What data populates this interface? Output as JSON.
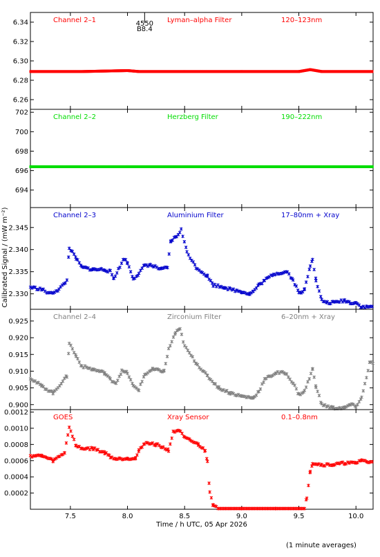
{
  "figure": {
    "ylabel": "Calibrated Signal / (mW m⁻²)",
    "xlabel": "Time / h UTC, 05 Apr 2026",
    "footnote": "(1 minute averages)",
    "annotation": {
      "lines": [
        "4550",
        "B8.4"
      ],
      "x": 8.15
    }
  },
  "chart_data": [
    {
      "type": "scatter",
      "panel_label": "Channel 2–1",
      "filter": "Lyman–alpha Filter",
      "band": "120–123nm",
      "color": "#ff0000",
      "marker": "dense",
      "xlim": [
        7.15,
        10.15
      ],
      "ylim": [
        6.25,
        6.35
      ],
      "yticks": [
        6.26,
        6.28,
        6.3,
        6.32,
        6.34
      ],
      "ytick_labels": [
        "6.26",
        "6.28",
        "6.30",
        "6.32",
        "6.34"
      ],
      "xticks": [
        7.5,
        8.0,
        8.5,
        9.0,
        9.5,
        10.0
      ],
      "points": [
        [
          7.15,
          6.289
        ],
        [
          7.6,
          6.289
        ],
        [
          8.0,
          6.29
        ],
        [
          8.1,
          6.289
        ],
        [
          8.5,
          6.289
        ],
        [
          9.0,
          6.289
        ],
        [
          9.5,
          6.289
        ],
        [
          9.6,
          6.291
        ],
        [
          9.7,
          6.289
        ],
        [
          10.15,
          6.289
        ]
      ]
    },
    {
      "type": "scatter",
      "panel_label": "Channel 2–2",
      "filter": "Herzberg Filter",
      "band": "190–222nm",
      "color": "#00dd00",
      "marker": "dense",
      "xlim": [
        7.15,
        10.15
      ],
      "ylim": [
        692.2,
        702.3
      ],
      "yticks": [
        694,
        696,
        698,
        700,
        702
      ],
      "ytick_labels": [
        "694",
        "696",
        "698",
        "700",
        "702"
      ],
      "xticks": [
        7.5,
        8.0,
        8.5,
        9.0,
        9.5,
        10.0
      ],
      "points": [
        [
          7.15,
          696.4
        ],
        [
          8.0,
          696.4
        ],
        [
          9.0,
          696.4
        ],
        [
          10.15,
          696.4
        ]
      ]
    },
    {
      "type": "scatter",
      "panel_label": "Channel 2–3",
      "filter": "Aluminium Filter",
      "band": "17–80nm + Xray",
      "color": "#0000cc",
      "marker": "star",
      "xlim": [
        7.15,
        10.15
      ],
      "ylim": [
        2.3265,
        2.3495
      ],
      "yticks": [
        2.33,
        2.335,
        2.34,
        2.345
      ],
      "ytick_labels": [
        "2.330",
        "2.335",
        "2.340",
        "2.345"
      ],
      "xticks": [
        7.5,
        8.0,
        8.5,
        9.0,
        9.5,
        10.0
      ],
      "points": [
        [
          7.15,
          2.3315
        ],
        [
          7.25,
          2.331
        ],
        [
          7.32,
          2.33
        ],
        [
          7.4,
          2.331
        ],
        [
          7.47,
          2.333
        ],
        [
          7.49,
          2.3405
        ],
        [
          7.55,
          2.338
        ],
        [
          7.6,
          2.336
        ],
        [
          7.7,
          2.3355
        ],
        [
          7.8,
          2.3355
        ],
        [
          7.85,
          2.335
        ],
        [
          7.88,
          2.3335
        ],
        [
          7.92,
          2.3355
        ],
        [
          7.97,
          2.338
        ],
        [
          8.0,
          2.337
        ],
        [
          8.05,
          2.3335
        ],
        [
          8.1,
          2.3345
        ],
        [
          8.15,
          2.3365
        ],
        [
          8.2,
          2.3365
        ],
        [
          8.3,
          2.3355
        ],
        [
          8.35,
          2.336
        ],
        [
          8.38,
          2.342
        ],
        [
          8.43,
          2.343
        ],
        [
          8.47,
          2.3445
        ],
        [
          8.52,
          2.3395
        ],
        [
          8.6,
          2.336
        ],
        [
          8.7,
          2.334
        ],
        [
          8.75,
          2.332
        ],
        [
          8.85,
          2.3315
        ],
        [
          8.9,
          2.331
        ],
        [
          9.0,
          2.3305
        ],
        [
          9.07,
          2.33
        ],
        [
          9.1,
          2.3305
        ],
        [
          9.15,
          2.332
        ],
        [
          9.2,
          2.333
        ],
        [
          9.28,
          2.3345
        ],
        [
          9.4,
          2.335
        ],
        [
          9.45,
          2.333
        ],
        [
          9.5,
          2.3305
        ],
        [
          9.52,
          2.33
        ],
        [
          9.55,
          2.331
        ],
        [
          9.6,
          2.3365
        ],
        [
          9.62,
          2.338
        ],
        [
          9.65,
          2.333
        ],
        [
          9.7,
          2.3285
        ],
        [
          9.75,
          2.328
        ],
        [
          9.8,
          2.328
        ],
        [
          9.9,
          2.3285
        ],
        [
          9.95,
          2.328
        ],
        [
          10.0,
          2.328
        ],
        [
          10.05,
          2.327
        ],
        [
          10.1,
          2.327
        ],
        [
          10.15,
          2.3272
        ]
      ]
    },
    {
      "type": "scatter",
      "panel_label": "Channel 2–4",
      "filter": "Zirconium Filter",
      "band": "6–20nm + Xray",
      "color": "#808080",
      "marker": "star",
      "xlim": [
        7.15,
        10.15
      ],
      "ylim": [
        0.8985,
        0.9285
      ],
      "yticks": [
        0.9,
        0.905,
        0.91,
        0.915,
        0.92,
        0.925
      ],
      "ytick_labels": [
        "0.900",
        "0.905",
        "0.910",
        "0.915",
        "0.920",
        "0.925"
      ],
      "xticks": [
        7.5,
        8.0,
        8.5,
        9.0,
        9.5,
        10.0
      ],
      "points": [
        [
          7.15,
          0.908
        ],
        [
          7.25,
          0.9055
        ],
        [
          7.35,
          0.9035
        ],
        [
          7.42,
          0.9065
        ],
        [
          7.47,
          0.9085
        ],
        [
          7.49,
          0.9185
        ],
        [
          7.55,
          0.9145
        ],
        [
          7.6,
          0.9115
        ],
        [
          7.7,
          0.9105
        ],
        [
          7.8,
          0.9095
        ],
        [
          7.85,
          0.9075
        ],
        [
          7.9,
          0.9065
        ],
        [
          7.95,
          0.91
        ],
        [
          8.0,
          0.9095
        ],
        [
          8.05,
          0.9055
        ],
        [
          8.1,
          0.9045
        ],
        [
          8.15,
          0.909
        ],
        [
          8.22,
          0.9105
        ],
        [
          8.32,
          0.91
        ],
        [
          8.36,
          0.9165
        ],
        [
          8.42,
          0.9215
        ],
        [
          8.46,
          0.9225
        ],
        [
          8.5,
          0.9175
        ],
        [
          8.6,
          0.9125
        ],
        [
          8.7,
          0.9085
        ],
        [
          8.8,
          0.905
        ],
        [
          8.9,
          0.9035
        ],
        [
          9.0,
          0.9025
        ],
        [
          9.1,
          0.902
        ],
        [
          9.15,
          0.904
        ],
        [
          9.2,
          0.9075
        ],
        [
          9.3,
          0.9095
        ],
        [
          9.38,
          0.9095
        ],
        [
          9.45,
          0.9065
        ],
        [
          9.5,
          0.903
        ],
        [
          9.55,
          0.904
        ],
        [
          9.62,
          0.9105
        ],
        [
          9.65,
          0.9055
        ],
        [
          9.7,
          0.9
        ],
        [
          9.8,
          0.899
        ],
        [
          9.9,
          0.899
        ],
        [
          9.95,
          0.9
        ],
        [
          10.0,
          0.8995
        ],
        [
          10.05,
          0.902
        ],
        [
          10.12,
          0.9125
        ],
        [
          10.15,
          0.9125
        ]
      ]
    },
    {
      "type": "scatter",
      "panel_label": "GOES",
      "filter": "Xray Sensor",
      "band": "0.1–0.8nm",
      "color": "#ff0000",
      "marker": "star",
      "xlim": [
        7.15,
        10.15
      ],
      "ylim": [
        0.0,
        0.00123
      ],
      "yticks": [
        0.0002,
        0.0004,
        0.0006,
        0.0008,
        0.001,
        0.0012
      ],
      "ytick_labels": [
        "0.0002",
        "0.0004",
        "0.0006",
        "0.0008",
        "0.0010",
        "0.0012"
      ],
      "xticks": [
        7.5,
        8.0,
        8.5,
        9.0,
        9.5,
        10.0
      ],
      "xtick_labels": [
        "7.5",
        "8.0",
        "8.5",
        "9.0",
        "9.5",
        "10.0"
      ],
      "points": [
        [
          7.15,
          0.00066
        ],
        [
          7.25,
          0.00066
        ],
        [
          7.35,
          0.0006
        ],
        [
          7.45,
          0.0007
        ],
        [
          7.49,
          0.00102
        ],
        [
          7.55,
          0.00078
        ],
        [
          7.6,
          0.00075
        ],
        [
          7.7,
          0.00075
        ],
        [
          7.8,
          0.0007
        ],
        [
          7.85,
          0.00065
        ],
        [
          7.9,
          0.00062
        ],
        [
          8.0,
          0.00063
        ],
        [
          8.07,
          0.00063
        ],
        [
          8.1,
          0.00072
        ],
        [
          8.15,
          0.00082
        ],
        [
          8.25,
          0.0008
        ],
        [
          8.3,
          0.00077
        ],
        [
          8.36,
          0.00073
        ],
        [
          8.4,
          0.00095
        ],
        [
          8.45,
          0.00098
        ],
        [
          8.5,
          0.00088
        ],
        [
          8.55,
          0.00085
        ],
        [
          8.62,
          0.0008
        ],
        [
          8.68,
          0.00072
        ],
        [
          8.7,
          0.0006
        ],
        [
          8.72,
          0.00022
        ],
        [
          8.75,
          5e-05
        ],
        [
          8.8,
          0.0
        ],
        [
          9.0,
          0.0
        ],
        [
          9.3,
          0.0
        ],
        [
          9.55,
          0.0
        ],
        [
          9.57,
          0.00015
        ],
        [
          9.6,
          0.00048
        ],
        [
          9.62,
          0.00057
        ],
        [
          9.7,
          0.00055
        ],
        [
          9.8,
          0.00055
        ],
        [
          9.9,
          0.00057
        ],
        [
          10.0,
          0.00057
        ],
        [
          10.05,
          0.00061
        ],
        [
          10.1,
          0.00058
        ],
        [
          10.15,
          0.0006
        ]
      ]
    }
  ]
}
